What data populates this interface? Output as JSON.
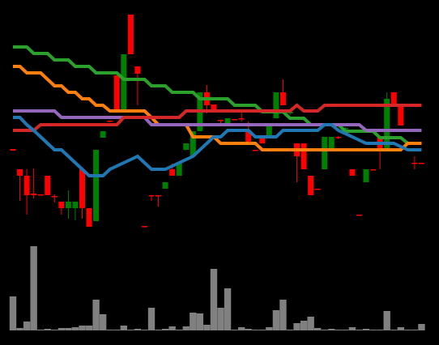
{
  "chart_data": {
    "type": "candlestick",
    "background": "#000000",
    "up_color": "#008000",
    "down_color": "#ff0000",
    "ylim": [
      0,
      290
    ],
    "open": [
      106,
      81,
      73,
      51,
      50,
      73,
      48,
      41,
      33,
      33,
      81,
      33,
      17,
      120,
      141,
      197,
      153,
      272,
      208,
      11,
      49,
      49,
      57,
      81,
      73,
      105,
      97,
      128,
      176,
      161,
      142,
      136,
      143,
      144,
      129,
      105,
      120,
      122,
      144,
      176,
      150,
      113,
      113,
      73,
      57,
      81,
      105,
      121,
      131,
      81,
      25,
      65,
      81,
      121,
      105,
      176,
      160,
      115,
      89,
      89
    ],
    "high": [
      106,
      81,
      81,
      82,
      50,
      73,
      50,
      41,
      55,
      41,
      81,
      33,
      105,
      128,
      141,
      197,
      223,
      272,
      208,
      11,
      49,
      49,
      65,
      88,
      89,
      113,
      128,
      176,
      185,
      161,
      142,
      144,
      143,
      155,
      140,
      105,
      120,
      138,
      176,
      192,
      153,
      113,
      113,
      73,
      57,
      121,
      121,
      122,
      133,
      81,
      25,
      81,
      81,
      121,
      176,
      176,
      160,
      116,
      97,
      89
    ],
    "low": [
      104,
      42,
      25,
      45,
      49,
      49,
      40,
      25,
      20,
      18,
      20,
      10,
      17,
      120,
      139,
      153,
      153,
      223,
      160,
      9,
      42,
      35,
      57,
      73,
      73,
      105,
      97,
      128,
      150,
      152,
      135,
      136,
      142,
      140,
      113,
      104,
      113,
      122,
      144,
      160,
      148,
      65,
      81,
      49,
      56,
      81,
      105,
      118,
      129,
      73,
      24,
      65,
      80,
      81,
      105,
      160,
      135,
      112,
      81,
      88
    ],
    "close": [
      104,
      73,
      49,
      49,
      49,
      49,
      47,
      33,
      41,
      41,
      33,
      10,
      105,
      128,
      140,
      153,
      223,
      223,
      199,
      10,
      48,
      48,
      65,
      73,
      89,
      113,
      128,
      176,
      160,
      152,
      141,
      144,
      142,
      143,
      113,
      104,
      113,
      138,
      176,
      160,
      152,
      97,
      81,
      49,
      56,
      121,
      121,
      120,
      132,
      73,
      24,
      81,
      80,
      105,
      168,
      160,
      135,
      113,
      88,
      88
    ],
    "series": [
      {
        "color": "#2ca02c",
        "values": [
          232,
          232,
          232,
          224,
          224,
          224,
          216,
          216,
          216,
          208,
          208,
          208,
          200,
          200,
          200,
          200,
          192,
          192,
          192,
          192,
          184,
          184,
          184,
          176,
          176,
          176,
          176,
          168,
          168,
          168,
          168,
          168,
          160,
          160,
          160,
          160,
          152,
          152,
          152,
          152,
          144,
          144,
          144,
          136,
          136,
          136,
          136,
          136,
          128,
          128,
          128,
          128,
          128,
          120,
          120,
          120,
          120,
          113,
          113,
          113
        ]
      },
      {
        "color": "#ff7f0e",
        "values": [
          208,
          208,
          200,
          200,
          200,
          192,
          184,
          184,
          176,
          176,
          168,
          168,
          160,
          160,
          153,
          153,
          153,
          153,
          153,
          153,
          145,
          136,
          136,
          136,
          136,
          136,
          121,
          121,
          121,
          121,
          113,
          113,
          113,
          113,
          113,
          113,
          105,
          105,
          105,
          105,
          105,
          105,
          105,
          105,
          105,
          105,
          105,
          105,
          105,
          105,
          105,
          105,
          105,
          105,
          105,
          105,
          105,
          113,
          113,
          113
        ]
      },
      {
        "color": "#9467bd",
        "values": [
          153,
          153,
          153,
          153,
          153,
          153,
          153,
          145,
          145,
          145,
          145,
          145,
          145,
          145,
          145,
          145,
          145,
          145,
          145,
          145,
          136,
          136,
          136,
          136,
          136,
          136,
          136,
          136,
          136,
          136,
          136,
          136,
          136,
          136,
          136,
          136,
          136,
          136,
          136,
          136,
          136,
          136,
          136,
          136,
          136,
          136,
          136,
          136,
          136,
          136,
          136,
          129,
          129,
          129,
          129,
          129,
          129,
          129,
          129,
          129
        ]
      },
      {
        "color": "#d62728",
        "values": [
          129,
          129,
          129,
          129,
          136,
          136,
          136,
          136,
          136,
          136,
          136,
          136,
          136,
          136,
          136,
          136,
          145,
          145,
          145,
          145,
          145,
          145,
          145,
          145,
          145,
          153,
          153,
          153,
          153,
          153,
          153,
          153,
          153,
          153,
          153,
          153,
          153,
          153,
          153,
          153,
          153,
          160,
          153,
          153,
          153,
          160,
          160,
          160,
          160,
          160,
          160,
          160,
          160,
          160,
          160,
          160,
          160,
          160,
          160,
          160
        ]
      },
      {
        "color": "#1f77b4",
        "values": [
          145,
          145,
          136,
          129,
          121,
          113,
          105,
          105,
          97,
          89,
          81,
          73,
          73,
          73,
          81,
          85,
          89,
          93,
          97,
          89,
          81,
          81,
          81,
          85,
          89,
          93,
          97,
          105,
          113,
          121,
          121,
          129,
          129,
          129,
          129,
          121,
          121,
          121,
          121,
          129,
          129,
          129,
          129,
          129,
          129,
          136,
          136,
          129,
          125,
          121,
          117,
          113,
          113,
          113,
          113,
          113,
          109,
          105,
          105,
          105
        ]
      }
    ],
    "volume": {
      "color": "#808080",
      "ylim": [
        0,
        110
      ],
      "values": [
        42,
        3,
        11,
        104,
        1,
        2,
        1,
        3,
        3,
        4,
        6,
        6,
        38,
        20,
        1,
        1,
        6,
        1,
        2,
        1,
        28,
        1,
        2,
        5,
        1,
        5,
        22,
        21,
        7,
        76,
        28,
        52,
        1,
        4,
        2,
        1,
        1,
        4,
        25,
        38,
        1,
        9,
        12,
        17,
        3,
        1,
        2,
        1,
        1,
        4,
        1,
        2,
        1,
        1,
        24,
        1,
        4,
        1,
        1,
        8
      ]
    }
  }
}
